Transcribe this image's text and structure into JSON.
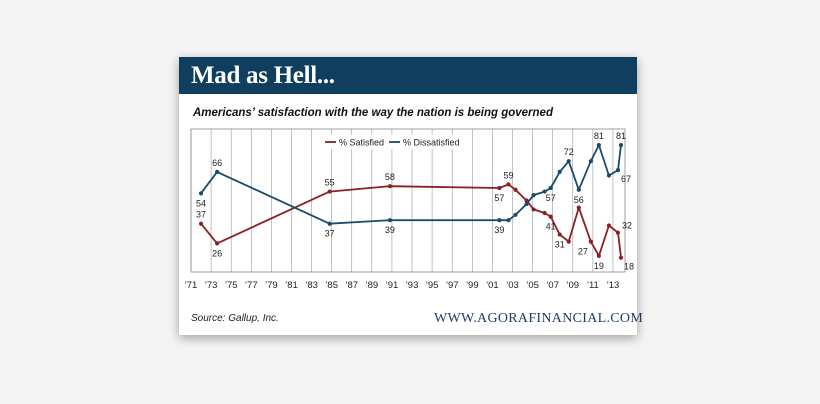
{
  "header": {
    "title": "Mad as Hell..."
  },
  "footer": {
    "source": "Source: Gallup, Inc.",
    "website": "WWW.AGORAFINANCIAL.COM"
  },
  "colors": {
    "satisfied": "#8b1f24",
    "dissatisfied": "#1b4a6b",
    "banner": "#0f3e5e"
  },
  "chart_data": {
    "type": "line",
    "title": "Americans’ satisfaction with the way the nation is being governed",
    "xlabel": "",
    "ylabel": "",
    "xlim": [
      1971,
      2014.2
    ],
    "ylim": [
      10,
      90
    ],
    "grid": "vertical",
    "legend_position": "top-center",
    "x_ticks": [
      {
        "year": 1971,
        "label": "’71"
      },
      {
        "year": 1973,
        "label": "’73"
      },
      {
        "year": 1975,
        "label": "’75"
      },
      {
        "year": 1977,
        "label": "’77"
      },
      {
        "year": 1979,
        "label": "’79"
      },
      {
        "year": 1981,
        "label": "’81"
      },
      {
        "year": 1983,
        "label": "’83"
      },
      {
        "year": 1985,
        "label": "’85"
      },
      {
        "year": 1987,
        "label": "’87"
      },
      {
        "year": 1989,
        "label": "’89"
      },
      {
        "year": 1991,
        "label": "’91"
      },
      {
        "year": 1993,
        "label": "’93"
      },
      {
        "year": 1995,
        "label": "’95"
      },
      {
        "year": 1997,
        "label": "’97"
      },
      {
        "year": 1999,
        "label": "’99"
      },
      {
        "year": 2001,
        "label": "’01"
      },
      {
        "year": 2003,
        "label": "’03"
      },
      {
        "year": 2005,
        "label": "’05"
      },
      {
        "year": 2007,
        "label": "’07"
      },
      {
        "year": 2009,
        "label": "’09"
      },
      {
        "year": 2011,
        "label": "’11"
      },
      {
        "year": 2013,
        "label": "’13"
      }
    ],
    "series": [
      {
        "name": "% Satisfied",
        "color": "#8b1f24",
        "points": [
          {
            "x": 1972,
            "y": 37
          },
          {
            "x": 1973.6,
            "y": 26
          },
          {
            "x": 1984.8,
            "y": 55
          },
          {
            "x": 1990.8,
            "y": 58
          },
          {
            "x": 2001.7,
            "y": 57
          },
          {
            "x": 2002.6,
            "y": 59
          },
          {
            "x": 2003.3,
            "y": 56
          },
          {
            "x": 2004.4,
            "y": 50
          },
          {
            "x": 2005.1,
            "y": 45
          },
          {
            "x": 2006.2,
            "y": 43
          },
          {
            "x": 2006.8,
            "y": 41
          },
          {
            "x": 2007.7,
            "y": 31
          },
          {
            "x": 2008.6,
            "y": 27
          },
          {
            "x": 2009.6,
            "y": 46
          },
          {
            "x": 2010.8,
            "y": 27
          },
          {
            "x": 2011.6,
            "y": 19
          },
          {
            "x": 2012.6,
            "y": 36
          },
          {
            "x": 2013.5,
            "y": 32
          },
          {
            "x": 2013.8,
            "y": 18
          }
        ],
        "labels": [
          {
            "x": 1972,
            "y": 37,
            "text": "37",
            "pos": "above"
          },
          {
            "x": 1973.6,
            "y": 26,
            "text": "26",
            "pos": "below"
          },
          {
            "x": 1984.8,
            "y": 55,
            "text": "55",
            "pos": "above"
          },
          {
            "x": 1990.8,
            "y": 58,
            "text": "58",
            "pos": "above"
          },
          {
            "x": 2001.7,
            "y": 57,
            "text": "57",
            "pos": "below"
          },
          {
            "x": 2002.6,
            "y": 59,
            "text": "59",
            "pos": "above"
          },
          {
            "x": 2006.8,
            "y": 41,
            "text": "41",
            "pos": "below"
          },
          {
            "x": 2007.7,
            "y": 31,
            "text": "31",
            "pos": "below"
          },
          {
            "x": 2010.8,
            "y": 27,
            "text": "27",
            "pos": "below-left"
          },
          {
            "x": 2011.6,
            "y": 19,
            "text": "19",
            "pos": "below"
          },
          {
            "x": 2013.5,
            "y": 32,
            "text": "32",
            "pos": "above-right"
          },
          {
            "x": 2013.8,
            "y": 18,
            "text": "18",
            "pos": "below-right"
          }
        ]
      },
      {
        "name": "% Dissatisfied",
        "color": "#1b4a6b",
        "points": [
          {
            "x": 1972,
            "y": 54
          },
          {
            "x": 1973.6,
            "y": 66
          },
          {
            "x": 1984.8,
            "y": 37
          },
          {
            "x": 1990.8,
            "y": 39
          },
          {
            "x": 2001.7,
            "y": 39
          },
          {
            "x": 2002.6,
            "y": 39
          },
          {
            "x": 2003.3,
            "y": 42
          },
          {
            "x": 2004.4,
            "y": 48
          },
          {
            "x": 2005.1,
            "y": 53
          },
          {
            "x": 2006.2,
            "y": 55
          },
          {
            "x": 2006.8,
            "y": 57
          },
          {
            "x": 2007.7,
            "y": 66
          },
          {
            "x": 2008.6,
            "y": 72
          },
          {
            "x": 2009.6,
            "y": 56
          },
          {
            "x": 2010.8,
            "y": 72
          },
          {
            "x": 2011.6,
            "y": 81
          },
          {
            "x": 2012.6,
            "y": 64
          },
          {
            "x": 2013.5,
            "y": 67
          },
          {
            "x": 2013.8,
            "y": 81
          }
        ],
        "labels": [
          {
            "x": 1972,
            "y": 54,
            "text": "54",
            "pos": "below"
          },
          {
            "x": 1973.6,
            "y": 66,
            "text": "66",
            "pos": "above"
          },
          {
            "x": 1984.8,
            "y": 37,
            "text": "37",
            "pos": "below"
          },
          {
            "x": 1990.8,
            "y": 39,
            "text": "39",
            "pos": "below"
          },
          {
            "x": 2001.7,
            "y": 39,
            "text": "39",
            "pos": "below"
          },
          {
            "x": 2006.8,
            "y": 57,
            "text": "57",
            "pos": "below"
          },
          {
            "x": 2008.6,
            "y": 72,
            "text": "72",
            "pos": "above"
          },
          {
            "x": 2009.6,
            "y": 56,
            "text": "56",
            "pos": "below"
          },
          {
            "x": 2011.6,
            "y": 81,
            "text": "81",
            "pos": "above"
          },
          {
            "x": 2013.5,
            "y": 67,
            "text": "67",
            "pos": "below-right"
          },
          {
            "x": 2013.8,
            "y": 81,
            "text": "81",
            "pos": "above"
          }
        ]
      }
    ]
  }
}
